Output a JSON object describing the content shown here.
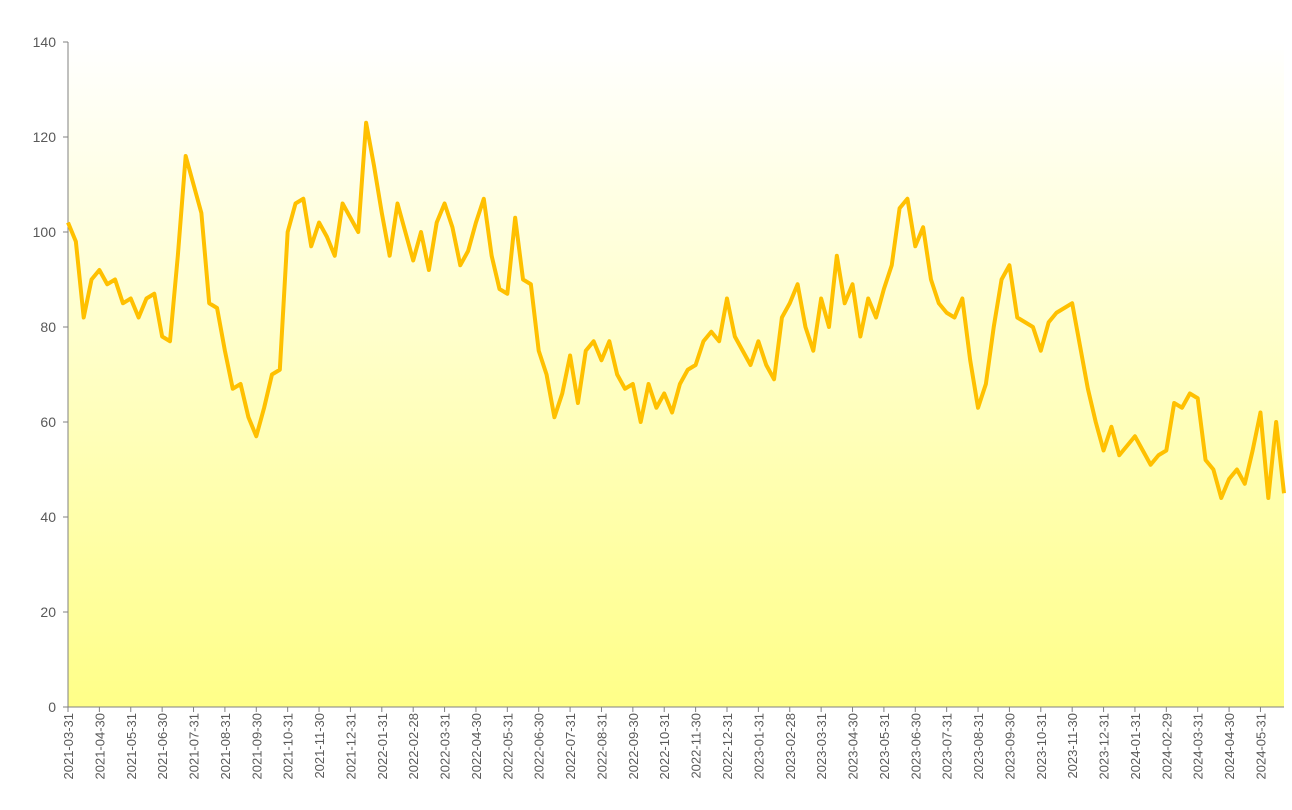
{
  "chart_data": {
    "type": "line",
    "categories": [
      "2021-03-31",
      null,
      null,
      null,
      "2021-04-30",
      null,
      null,
      null,
      "2021-05-31",
      null,
      null,
      null,
      "2021-06-30",
      null,
      null,
      null,
      "2021-07-31",
      null,
      null,
      null,
      "2021-08-31",
      null,
      null,
      null,
      "2021-09-30",
      null,
      null,
      null,
      "2021-10-31",
      null,
      null,
      null,
      "2021-11-30",
      null,
      null,
      null,
      "2021-12-31",
      null,
      null,
      null,
      "2022-01-31",
      null,
      null,
      null,
      "2022-02-28",
      null,
      null,
      null,
      "2022-03-31",
      null,
      null,
      null,
      "2022-04-30",
      null,
      null,
      null,
      "2022-05-31",
      null,
      null,
      null,
      "2022-06-30",
      null,
      null,
      null,
      "2022-07-31",
      null,
      null,
      null,
      "2022-08-31",
      null,
      null,
      null,
      "2022-09-30",
      null,
      null,
      null,
      "2022-10-31",
      null,
      null,
      null,
      "2022-11-30",
      null,
      null,
      null,
      "2022-12-31",
      null,
      null,
      null,
      "2023-01-31",
      null,
      null,
      null,
      "2023-02-28",
      null,
      null,
      null,
      "2023-03-31",
      null,
      null,
      null,
      "2023-04-30",
      null,
      null,
      null,
      "2023-05-31",
      null,
      null,
      null,
      "2023-06-30",
      null,
      null,
      null,
      "2023-07-31",
      null,
      null,
      null,
      "2023-08-31",
      null,
      null,
      null,
      "2023-09-30",
      null,
      null,
      null,
      "2023-10-31",
      null,
      null,
      null,
      "2023-11-30",
      null,
      null,
      null,
      "2023-12-31",
      null,
      null,
      null,
      "2024-01-31",
      null,
      null,
      null,
      "2024-02-29",
      null,
      null,
      null,
      "2024-03-31",
      null,
      null,
      null,
      "2024-04-30",
      null,
      null,
      null,
      "2024-05-31",
      null,
      null,
      null
    ],
    "series": [
      {
        "color": "#ffc000",
        "values": [
          102,
          98,
          82,
          90,
          92,
          89,
          90,
          85,
          86,
          82,
          86,
          87,
          78,
          77,
          95,
          116,
          110,
          104,
          85,
          84,
          75,
          67,
          68,
          61,
          57,
          63,
          70,
          71,
          100,
          106,
          107,
          97,
          102,
          99,
          95,
          106,
          103,
          100,
          123,
          114,
          104,
          95,
          106,
          100,
          94,
          100,
          92,
          102,
          106,
          101,
          93,
          96,
          102,
          107,
          95,
          88,
          87,
          103,
          90,
          89,
          75,
          70,
          61,
          66,
          74,
          64,
          75,
          77,
          73,
          77,
          70,
          67,
          68,
          60,
          68,
          63,
          66,
          62,
          68,
          71,
          72,
          77,
          79,
          77,
          86,
          78,
          75,
          72,
          77,
          72,
          69,
          82,
          85,
          89,
          80,
          75,
          86,
          80,
          95,
          85,
          89,
          78,
          86,
          82,
          88,
          93,
          105,
          107,
          97,
          101,
          90,
          85,
          83,
          82,
          86,
          73,
          63,
          68,
          80,
          90,
          93,
          82,
          81,
          80,
          75,
          81,
          83,
          84,
          85,
          76,
          67,
          60,
          54,
          59,
          53,
          55,
          57,
          54,
          51,
          53,
          54,
          64,
          63,
          66,
          65,
          52,
          50,
          44,
          48,
          50,
          47,
          54,
          62,
          44,
          60,
          45
        ]
      }
    ],
    "ylim": [
      0,
      140
    ],
    "yticks": [
      0,
      20,
      40,
      60,
      80,
      100,
      120,
      140
    ],
    "background": [
      "#ffffff",
      "#ffff88"
    ]
  }
}
